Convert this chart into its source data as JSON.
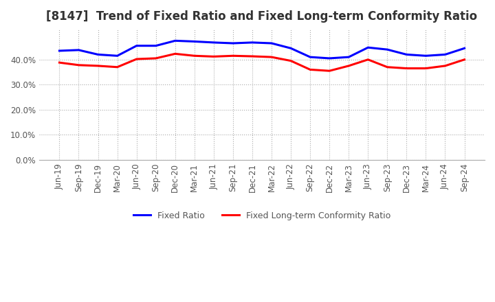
{
  "title": "[8147]  Trend of Fixed Ratio and Fixed Long-term Conformity Ratio",
  "x_labels": [
    "Jun-19",
    "Sep-19",
    "Dec-19",
    "Mar-20",
    "Jun-20",
    "Sep-20",
    "Dec-20",
    "Mar-21",
    "Jun-21",
    "Sep-21",
    "Dec-21",
    "Mar-22",
    "Jun-22",
    "Sep-22",
    "Dec-22",
    "Mar-23",
    "Jun-23",
    "Sep-23",
    "Dec-23",
    "Mar-24",
    "Jun-24",
    "Sep-24"
  ],
  "fixed_ratio": [
    43.5,
    43.8,
    42.0,
    41.5,
    45.5,
    45.5,
    47.5,
    47.2,
    46.8,
    46.5,
    46.8,
    46.5,
    44.5,
    41.0,
    40.5,
    41.0,
    44.8,
    44.0,
    42.0,
    41.5,
    42.0,
    44.5
  ],
  "fixed_lt_ratio": [
    38.8,
    37.8,
    37.5,
    37.0,
    40.2,
    40.5,
    42.3,
    41.5,
    41.2,
    41.5,
    41.3,
    41.0,
    39.5,
    36.0,
    35.5,
    37.5,
    40.0,
    37.0,
    36.5,
    36.5,
    37.5,
    40.0
  ],
  "fixed_ratio_color": "#0000ff",
  "fixed_lt_ratio_color": "#ff0000",
  "ylim": [
    0,
    52
  ],
  "yticks": [
    0.0,
    10.0,
    20.0,
    30.0,
    40.0
  ],
  "background_color": "#ffffff",
  "grid_color": "#aaaaaa",
  "line_width": 2.2,
  "title_fontsize": 12,
  "tick_fontsize": 8.5
}
